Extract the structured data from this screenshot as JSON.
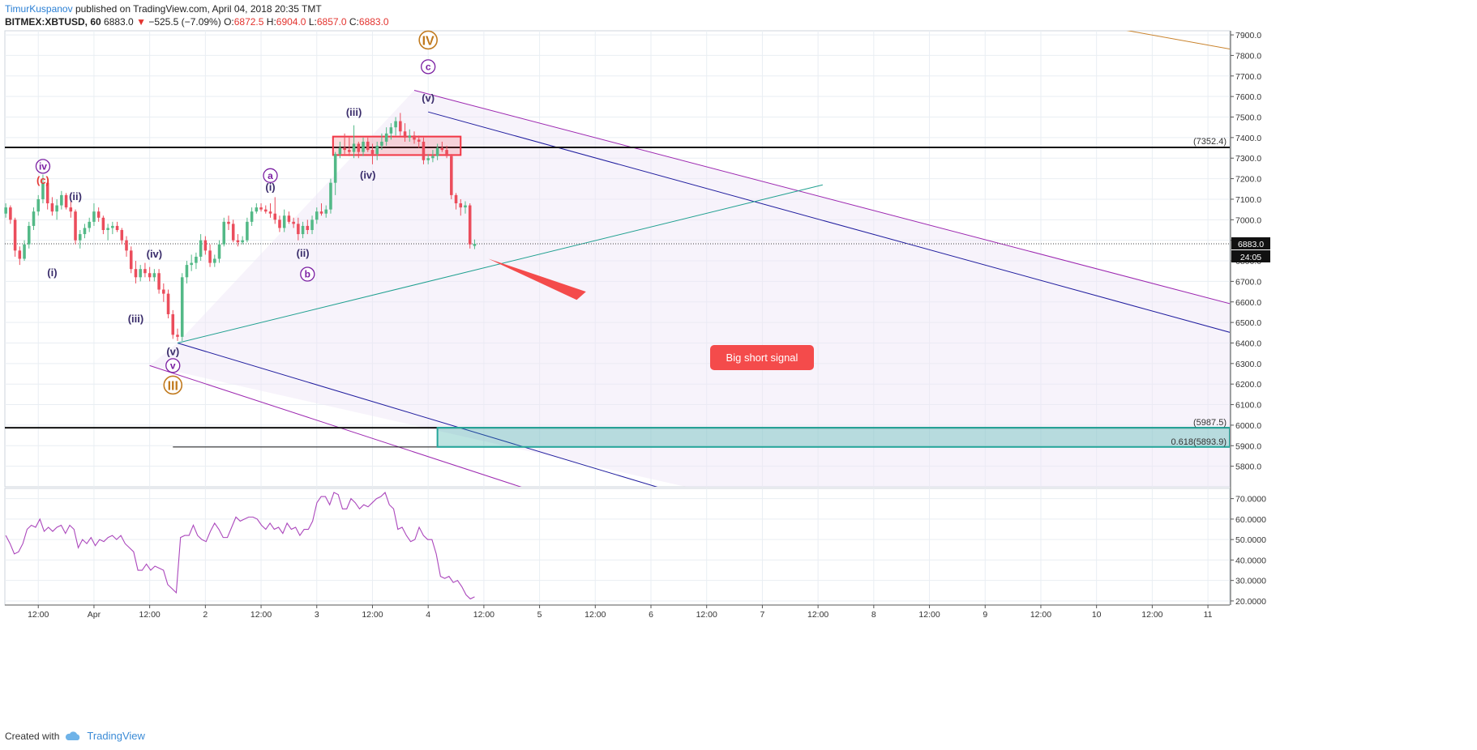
{
  "header": {
    "author": "TimurKuspanov",
    "published": "published on TradingView.com, April 04, 2018 20:35 TMT",
    "symbol": "BITMEX:XBTUSD, 60",
    "last": "6883.0",
    "change_arrow": "▼",
    "change": "−525.5 (−7.09%)",
    "o_label": "O:",
    "o": "6872.5",
    "h_label": "H:",
    "h": "6904.0",
    "l_label": "L:",
    "l": "6857.0",
    "c_label": "C:",
    "c": "6883.0"
  },
  "footer": {
    "created_with": "Created with",
    "brand": "TradingView",
    "logo_icon": "tradingview-cloud-icon"
  },
  "colors": {
    "bull": "#53b987",
    "bear": "#eb4d5c",
    "grid": "#e9eef3",
    "rsi": "#ab47bc",
    "channel_outer": "#9c27b0",
    "channel_inner": "#1f1c9e",
    "trendline": "#20a090",
    "target_zone": "#26a69a",
    "resistance_zone": "#f23645",
    "signal": "#f44b4b"
  },
  "chart_data": [
    {
      "type": "candlestick",
      "title": "",
      "y_ticks": [
        "5800.0",
        "5900.0",
        "6000.0",
        "6100.0",
        "6200.0",
        "6300.0",
        "6400.0",
        "6500.0",
        "6600.0",
        "6700.0",
        "6800.0",
        "6900.0",
        "7000.0",
        "7100.0",
        "7200.0",
        "7300.0",
        "7400.0",
        "7500.0",
        "7600.0",
        "7700.0",
        "7800.0",
        "7900.0"
      ],
      "ylim": [
        5700,
        7920
      ],
      "x_ticks": [
        "12:00",
        "Apr",
        "12:00",
        "2",
        "12:00",
        "3",
        "12:00",
        "4",
        "12:00",
        "5",
        "12:00",
        "6",
        "12:00",
        "7",
        "12:00",
        "8",
        "12:00",
        "9",
        "12:00",
        "10",
        "12:00",
        "11"
      ],
      "x_tick_hours": [
        -12,
        0,
        12,
        24,
        36,
        48,
        60,
        72,
        84,
        96,
        108,
        120,
        132,
        144,
        156,
        168,
        180,
        192,
        204,
        216,
        228,
        240
      ],
      "xlim_hours": [
        -19.2,
        244.7
      ],
      "ohlc": [
        [
          -19,
          7030,
          7080,
          7010,
          7060
        ],
        [
          -18,
          7060,
          7070,
          6980,
          7000
        ],
        [
          -17,
          7000,
          7010,
          6820,
          6850
        ],
        [
          -16,
          6850,
          6870,
          6780,
          6810
        ],
        [
          -15,
          6810,
          6900,
          6800,
          6880
        ],
        [
          -14,
          6880,
          6990,
          6860,
          6970
        ],
        [
          -13,
          6970,
          7060,
          6950,
          7040
        ],
        [
          -12,
          7040,
          7120,
          7020,
          7100
        ],
        [
          -11,
          7100,
          7220,
          7080,
          7180
        ],
        [
          -10,
          7180,
          7200,
          7050,
          7080
        ],
        [
          -9,
          7080,
          7110,
          7020,
          7040
        ],
        [
          -8,
          7040,
          7100,
          7000,
          7070
        ],
        [
          -7,
          7070,
          7140,
          7050,
          7120
        ],
        [
          -6,
          7120,
          7130,
          7050,
          7060
        ],
        [
          -5,
          7060,
          7090,
          7010,
          7040
        ],
        [
          -4,
          7040,
          7050,
          6880,
          6900
        ],
        [
          -3,
          6900,
          6950,
          6860,
          6930
        ],
        [
          -2,
          6930,
          6980,
          6910,
          6960
        ],
        [
          -1,
          6960,
          7010,
          6940,
          6990
        ],
        [
          0,
          6990,
          7080,
          6970,
          7040
        ],
        [
          1,
          7040,
          7060,
          6990,
          7010
        ],
        [
          2,
          7010,
          7020,
          6930,
          6950
        ],
        [
          3,
          6950,
          6980,
          6900,
          6960
        ],
        [
          4,
          6960,
          6990,
          6930,
          6970
        ],
        [
          5,
          6970,
          6990,
          6940,
          6950
        ],
        [
          6,
          6950,
          6960,
          6880,
          6900
        ],
        [
          7,
          6900,
          6920,
          6820,
          6850
        ],
        [
          8,
          6850,
          6870,
          6740,
          6760
        ],
        [
          9,
          6760,
          6800,
          6690,
          6720
        ],
        [
          10,
          6720,
          6780,
          6700,
          6760
        ],
        [
          11,
          6760,
          6790,
          6720,
          6740
        ],
        [
          12,
          6740,
          6770,
          6700,
          6720
        ],
        [
          13,
          6720,
          6760,
          6700,
          6740
        ],
        [
          14,
          6740,
          6760,
          6640,
          6660
        ],
        [
          15,
          6660,
          6690,
          6600,
          6640
        ],
        [
          16,
          6640,
          6660,
          6520,
          6540
        ],
        [
          17,
          6540,
          6560,
          6420,
          6440
        ],
        [
          18,
          6440,
          6470,
          6410,
          6430
        ],
        [
          19,
          6430,
          6740,
          6410,
          6720
        ],
        [
          20,
          6720,
          6800,
          6690,
          6780
        ],
        [
          21,
          6780,
          6830,
          6750,
          6790
        ],
        [
          22,
          6790,
          6840,
          6760,
          6820
        ],
        [
          23,
          6820,
          6930,
          6800,
          6900
        ],
        [
          24,
          6900,
          6920,
          6830,
          6850
        ],
        [
          25,
          6850,
          6880,
          6770,
          6790
        ],
        [
          26,
          6790,
          6830,
          6770,
          6810
        ],
        [
          27,
          6810,
          6900,
          6790,
          6880
        ],
        [
          28,
          6880,
          7010,
          6870,
          6990
        ],
        [
          29,
          6990,
          7020,
          6950,
          6980
        ],
        [
          30,
          6980,
          7000,
          6890,
          6900
        ],
        [
          31,
          6900,
          6930,
          6870,
          6890
        ],
        [
          32,
          6890,
          6920,
          6880,
          6900
        ],
        [
          33,
          6900,
          7010,
          6890,
          6990
        ],
        [
          34,
          6990,
          7060,
          6970,
          7040
        ],
        [
          35,
          7040,
          7080,
          7030,
          7060
        ],
        [
          36,
          7060,
          7080,
          7040,
          7050
        ],
        [
          37,
          7050,
          7070,
          7030,
          7040
        ],
        [
          38,
          7040,
          7080,
          7010,
          7030
        ],
        [
          39,
          7030,
          7110,
          6980,
          7000
        ],
        [
          40,
          7000,
          7020,
          6940,
          6960
        ],
        [
          41,
          6960,
          7050,
          6940,
          7020
        ],
        [
          42,
          7020,
          7040,
          6980,
          6990
        ],
        [
          43,
          6990,
          7010,
          6960,
          6980
        ],
        [
          44,
          6980,
          7010,
          6900,
          6930
        ],
        [
          45,
          6930,
          6990,
          6910,
          6970
        ],
        [
          46,
          6970,
          7000,
          6930,
          6950
        ],
        [
          47,
          6950,
          7020,
          6930,
          7000
        ],
        [
          48,
          7000,
          7060,
          6980,
          7040
        ],
        [
          49,
          7040,
          7080,
          7020,
          7030
        ],
        [
          50,
          7030,
          7070,
          7010,
          7050
        ],
        [
          51,
          7050,
          7200,
          7030,
          7180
        ],
        [
          52,
          7180,
          7330,
          7120,
          7320
        ],
        [
          53,
          7320,
          7380,
          7300,
          7350
        ],
        [
          54,
          7350,
          7420,
          7320,
          7340
        ],
        [
          55,
          7340,
          7400,
          7310,
          7330
        ],
        [
          56,
          7330,
          7460,
          7300,
          7370
        ],
        [
          57,
          7370,
          7380,
          7300,
          7330
        ],
        [
          58,
          7330,
          7400,
          7310,
          7380
        ],
        [
          59,
          7380,
          7400,
          7330,
          7340
        ],
        [
          60,
          7340,
          7370,
          7270,
          7320
        ],
        [
          61,
          7320,
          7380,
          7290,
          7360
        ],
        [
          62,
          7360,
          7420,
          7340,
          7380
        ],
        [
          63,
          7380,
          7450,
          7360,
          7420
        ],
        [
          64,
          7420,
          7470,
          7390,
          7450
        ],
        [
          65,
          7450,
          7500,
          7410,
          7480
        ],
        [
          66,
          7480,
          7520,
          7410,
          7430
        ],
        [
          67,
          7430,
          7470,
          7380,
          7400
        ],
        [
          68,
          7400,
          7440,
          7380,
          7410
        ],
        [
          69,
          7410,
          7430,
          7370,
          7390
        ],
        [
          70,
          7390,
          7410,
          7350,
          7380
        ],
        [
          71,
          7380,
          7400,
          7270,
          7290
        ],
        [
          72,
          7290,
          7320,
          7270,
          7300
        ],
        [
          73,
          7300,
          7340,
          7280,
          7310
        ],
        [
          74,
          7310,
          7370,
          7290,
          7350
        ],
        [
          75,
          7350,
          7380,
          7330,
          7340
        ],
        [
          76,
          7340,
          7360,
          7300,
          7310
        ],
        [
          77,
          7310,
          7320,
          7100,
          7120
        ],
        [
          78,
          7120,
          7130,
          7050,
          7080
        ],
        [
          79,
          7080,
          7100,
          7020,
          7060
        ],
        [
          80,
          7060,
          7090,
          7030,
          7070
        ],
        [
          81,
          7070,
          7080,
          6860,
          6880
        ],
        [
          82,
          6872.5,
          6904,
          6857,
          6883
        ]
      ],
      "levels": [
        {
          "label": "(7352.4)",
          "value": 7352.4
        },
        {
          "label": "(5987.5)",
          "value": 5987.5
        },
        {
          "label": "0.618(5893.9)",
          "value": 5893.9
        }
      ],
      "price_badge": "6883.0",
      "countdown_badge": "24:05",
      "last_value": 6883.0,
      "wave_labels": [
        {
          "text": "IV",
          "circled": true,
          "color": "#c17a1e",
          "h": 72,
          "p": 7875,
          "big": true
        },
        {
          "text": "c",
          "circled": true,
          "color": "#7b1fa2",
          "h": 72,
          "p": 7745
        },
        {
          "text": "(v)",
          "circled": false,
          "color": "#3a2d6b",
          "h": 72,
          "p": 7595
        },
        {
          "text": "(iii)",
          "circled": false,
          "color": "#3a2d6b",
          "h": 56,
          "p": 7525
        },
        {
          "text": "(iv)",
          "circled": false,
          "color": "#3a2d6b",
          "h": 59,
          "p": 7220
        },
        {
          "text": "iv",
          "circled": true,
          "color": "#7b1fa2",
          "h": -11,
          "p": 7260
        },
        {
          "text": "(c)",
          "circled": false,
          "color": "#e53935",
          "h": -11,
          "p": 7195
        },
        {
          "text": "(ii)",
          "circled": false,
          "color": "#3a2d6b",
          "h": -4,
          "p": 7115
        },
        {
          "text": "(i)",
          "circled": false,
          "color": "#3a2d6b",
          "h": -9,
          "p": 6745
        },
        {
          "text": "a",
          "circled": true,
          "color": "#7b1fa2",
          "h": 38,
          "p": 7215
        },
        {
          "text": "(i)",
          "circled": false,
          "color": "#3a2d6b",
          "h": 38,
          "p": 7160
        },
        {
          "text": "(ii)",
          "circled": false,
          "color": "#3a2d6b",
          "h": 45,
          "p": 6840
        },
        {
          "text": "b",
          "circled": true,
          "color": "#7b1fa2",
          "h": 46,
          "p": 6735
        },
        {
          "text": "(iv)",
          "circled": false,
          "color": "#3a2d6b",
          "h": 13,
          "p": 6835
        },
        {
          "text": "(iii)",
          "circled": false,
          "color": "#3a2d6b",
          "h": 9,
          "p": 6520
        },
        {
          "text": "(v)",
          "circled": false,
          "color": "#3a2d6b",
          "h": 17,
          "p": 6360
        },
        {
          "text": "v",
          "circled": true,
          "color": "#7b1fa2",
          "h": 17,
          "p": 6290
        },
        {
          "text": "III",
          "circled": true,
          "color": "#c17a1e",
          "h": 17,
          "p": 6195,
          "big": true
        }
      ],
      "annotation": "Big short signal"
    },
    {
      "type": "line",
      "title": "",
      "y_ticks": [
        "20.0000",
        "30.0000",
        "40.0000",
        "50.0000",
        "60.0000",
        "70.0000"
      ],
      "ylim": [
        18,
        75
      ],
      "series": [
        {
          "values": [
            52,
            48,
            43,
            44,
            48,
            55,
            57,
            56,
            60,
            54,
            56,
            54,
            56,
            57,
            53,
            57,
            55,
            46,
            50,
            48,
            51,
            47,
            50,
            49,
            51,
            52,
            50,
            52,
            48,
            46,
            44,
            35,
            35,
            38,
            35,
            37,
            36,
            35,
            28,
            26,
            24,
            51,
            52,
            52,
            57,
            52,
            50,
            49,
            54,
            58,
            55,
            51,
            51,
            56,
            61,
            59,
            60,
            61,
            61,
            60,
            57,
            55,
            58,
            55,
            56,
            53,
            58,
            55,
            56,
            52,
            55,
            55,
            59,
            68,
            71,
            71,
            67,
            73,
            72,
            65,
            65,
            70,
            68,
            65,
            67,
            66,
            68,
            70,
            71,
            73,
            67,
            65,
            55,
            56,
            52,
            49,
            50,
            56,
            52,
            50,
            50,
            43,
            32,
            31,
            32,
            29,
            30,
            27,
            23,
            21,
            22
          ]
        }
      ]
    }
  ]
}
